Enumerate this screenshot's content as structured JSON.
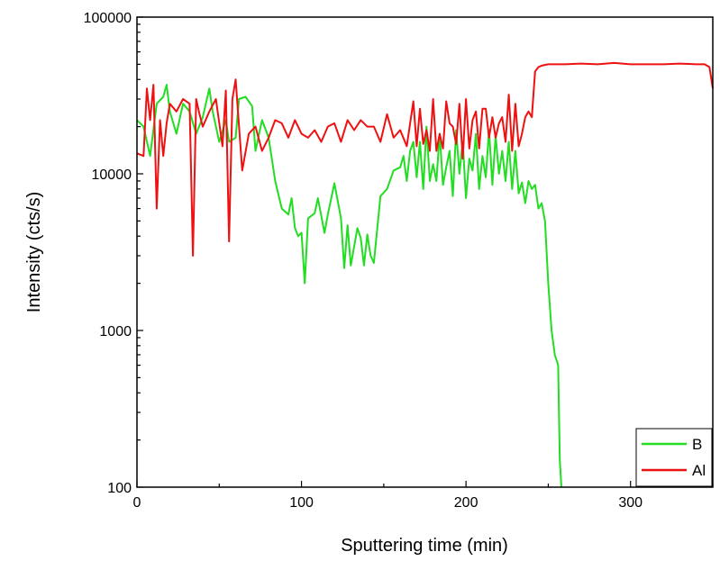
{
  "chart_data": {
    "type": "line",
    "title": "",
    "xlabel": "Sputtering time (min)",
    "ylabel": "Intensity (cts/s)",
    "xlim": [
      0,
      350
    ],
    "ylim": [
      100,
      100000
    ],
    "yscale": "log",
    "grid": false,
    "legend_position": "bottom-right",
    "x_ticks": [
      0,
      100,
      200,
      300
    ],
    "x_tick_labels": [
      "0",
      "100",
      "200",
      "300"
    ],
    "y_ticks": [
      100,
      1000,
      10000,
      100000
    ],
    "y_tick_labels": [
      "100",
      "1000",
      "10000",
      "100000"
    ],
    "series": [
      {
        "name": "B",
        "color": "#22dd22",
        "x": [
          0,
          4,
          8,
          12,
          16,
          18,
          20,
          24,
          28,
          32,
          36,
          40,
          44,
          46,
          50,
          54,
          56,
          60,
          62,
          66,
          70,
          72,
          76,
          80,
          84,
          88,
          92,
          94,
          96,
          98,
          100,
          102,
          104,
          108,
          110,
          114,
          116,
          120,
          124,
          126,
          128,
          130,
          134,
          136,
          138,
          140,
          142,
          144,
          148,
          152,
          156,
          160,
          162,
          164,
          166,
          168,
          170,
          172,
          174,
          176,
          178,
          180,
          182,
          184,
          186,
          188,
          190,
          192,
          194,
          196,
          198,
          200,
          202,
          204,
          206,
          208,
          210,
          212,
          214,
          216,
          218,
          220,
          222,
          224,
          226,
          228,
          230,
          232,
          234,
          236,
          238,
          240,
          242,
          244,
          246,
          248,
          250,
          252,
          254,
          256,
          257,
          258
        ],
        "y": [
          22000,
          20000,
          13000,
          28000,
          31000,
          37000,
          25000,
          18000,
          28000,
          25000,
          18000,
          23000,
          35000,
          25000,
          16000,
          22000,
          16000,
          17000,
          30000,
          31000,
          27000,
          14000,
          22000,
          17000,
          9000,
          6000,
          5500,
          7000,
          4500,
          4000,
          4200,
          2000,
          5200,
          5600,
          7000,
          4200,
          5500,
          8700,
          5200,
          2500,
          4700,
          2600,
          4500,
          3900,
          2600,
          4100,
          3000,
          2700,
          7200,
          8000,
          10500,
          11000,
          13000,
          9000,
          14000,
          16000,
          9500,
          16000,
          8000,
          20000,
          9000,
          11500,
          9000,
          18000,
          8500,
          11000,
          14000,
          7200,
          19000,
          10000,
          16000,
          7000,
          12500,
          10500,
          18000,
          8000,
          13000,
          9500,
          19000,
          8500,
          17500,
          10000,
          14000,
          9000,
          16000,
          8000,
          14000,
          7500,
          8800,
          6500,
          9000,
          8000,
          8500,
          6000,
          6500,
          5000,
          2000,
          1000,
          700,
          600,
          150,
          100
        ]
      },
      {
        "name": "Al",
        "color": "#ee1111",
        "x": [
          0,
          4,
          6,
          8,
          10,
          12,
          14,
          16,
          18,
          20,
          24,
          28,
          32,
          34,
          36,
          38,
          40,
          44,
          48,
          52,
          54,
          56,
          58,
          60,
          64,
          68,
          72,
          76,
          80,
          84,
          88,
          92,
          96,
          100,
          104,
          108,
          112,
          116,
          120,
          124,
          128,
          132,
          136,
          140,
          144,
          148,
          152,
          156,
          160,
          164,
          168,
          170,
          172,
          174,
          176,
          178,
          180,
          182,
          184,
          186,
          188,
          190,
          192,
          194,
          196,
          198,
          200,
          202,
          204,
          206,
          208,
          210,
          212,
          214,
          216,
          218,
          220,
          222,
          224,
          226,
          228,
          230,
          232,
          234,
          236,
          238,
          240,
          242,
          244,
          246,
          250,
          255,
          260,
          270,
          280,
          290,
          300,
          310,
          320,
          330,
          340,
          345,
          348,
          350
        ],
        "y": [
          13500,
          13000,
          35000,
          22000,
          37000,
          6000,
          22000,
          13000,
          21000,
          28000,
          25000,
          30000,
          28000,
          3000,
          30000,
          24000,
          20000,
          25000,
          30000,
          15000,
          34000,
          3700,
          30000,
          40000,
          10500,
          18000,
          20000,
          14000,
          17000,
          22000,
          21000,
          17000,
          22000,
          18000,
          17000,
          19000,
          16000,
          20000,
          21000,
          16000,
          22000,
          19000,
          22000,
          20000,
          20000,
          16000,
          24000,
          17000,
          19000,
          15000,
          29000,
          15000,
          26000,
          15500,
          19000,
          14000,
          30000,
          14000,
          18000,
          14500,
          29000,
          21000,
          20000,
          15500,
          28000,
          12500,
          30000,
          14500,
          22000,
          25000,
          14500,
          26000,
          26000,
          17000,
          23000,
          17000,
          21000,
          23000,
          16000,
          32000,
          14000,
          28000,
          15000,
          18000,
          23000,
          25000,
          23000,
          45000,
          48000,
          49000,
          50000,
          50000,
          50000,
          50500,
          50000,
          51000,
          50000,
          50000,
          50000,
          50500,
          50000,
          50000,
          48000,
          35000
        ]
      }
    ]
  }
}
